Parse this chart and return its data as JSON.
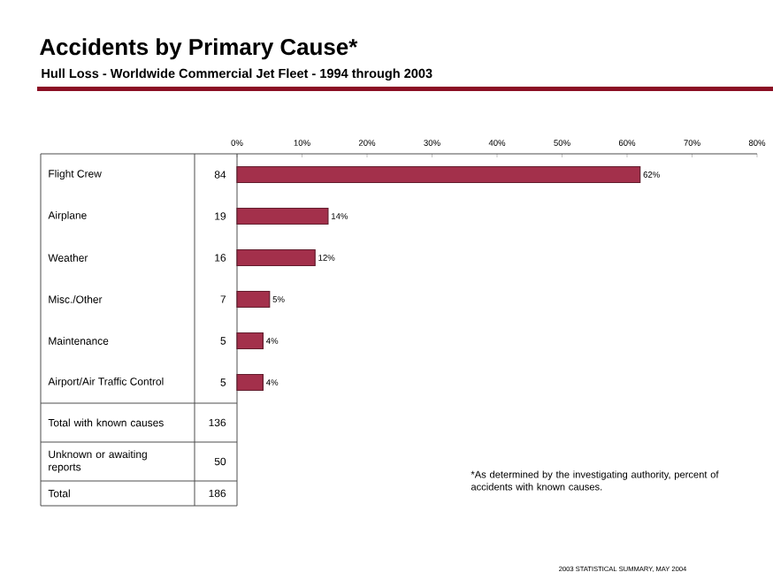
{
  "chart_data": {
    "type": "bar",
    "orientation": "horizontal",
    "title": "Accidents by Primary Cause*",
    "subtitle": "Hull Loss - Worldwide Commercial Jet Fleet - 1994 through 2003",
    "categories": [
      "Flight Crew",
      "Airplane",
      "Weather",
      "Misc./Other",
      "Maintenance",
      "Airport/Air Traffic Control"
    ],
    "values": [
      62,
      14,
      12,
      5,
      4,
      4
    ],
    "value_labels": [
      "62%",
      "14%",
      "12%",
      "5%",
      "4%",
      "4%"
    ],
    "color": "#a3304b",
    "xlim": [
      0,
      80
    ],
    "xticks": [
      {
        "value": 0,
        "label": "0%"
      },
      {
        "value": 10,
        "label": "10%"
      },
      {
        "value": 20,
        "label": "20%"
      },
      {
        "value": 30,
        "label": "30%"
      },
      {
        "value": 40,
        "label": "40%"
      },
      {
        "value": 50,
        "label": "50%"
      },
      {
        "value": 60,
        "label": "60%"
      },
      {
        "value": 70,
        "label": "70%"
      },
      {
        "value": 80,
        "label": "80%"
      }
    ],
    "annotations": [
      "84",
      "19",
      "16",
      "7",
      "5",
      "5",
      "Total with known causes",
      "136",
      "Unknown or awaiting reports",
      "50",
      "Total",
      "186",
      "*As determined by the investigating authority, percent of accidents with known causes.",
      "2003 STATISTICAL SUMMARY, MAY 2004"
    ]
  }
}
